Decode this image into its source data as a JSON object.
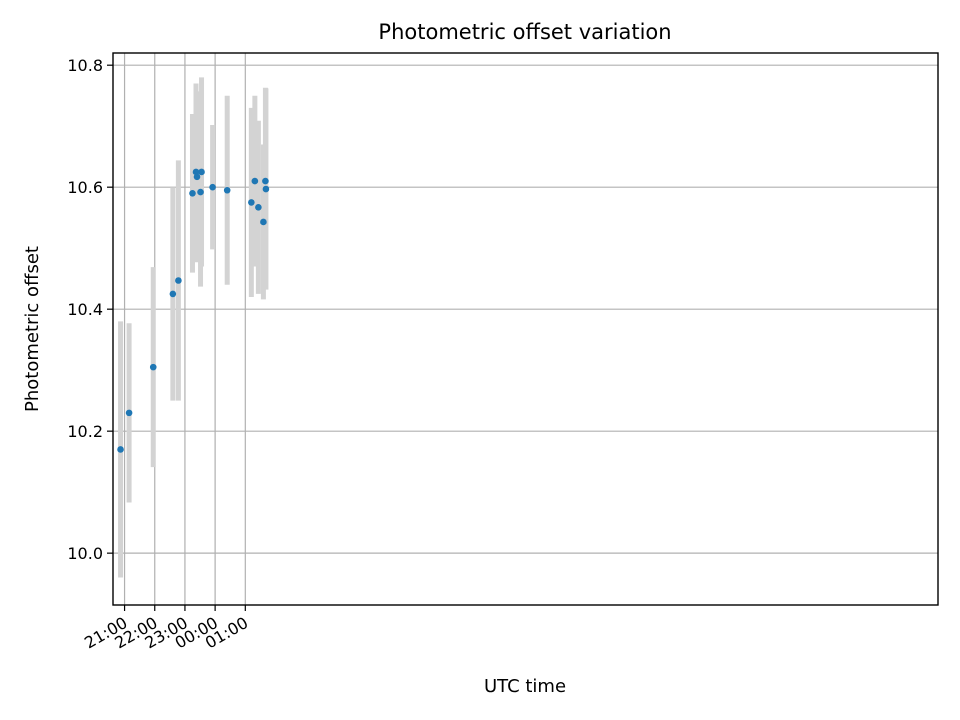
{
  "chart_data": {
    "type": "scatter",
    "title": "Photometric offset variation",
    "xlabel": "UTC time",
    "ylabel": "Photometric offset",
    "x_unit": "UTC time (HH:MM)",
    "xlim": [
      "20:37",
      "23:57+1"
    ],
    "ylim": [
      9.915,
      10.82
    ],
    "x_ticks": [
      "21:00",
      "22:00",
      "23:00",
      "00:00",
      "01:00"
    ],
    "y_ticks": [
      "10.0",
      "10.2",
      "10.4",
      "10.6",
      "10.8"
    ],
    "grid": true,
    "marker_color": "#1f77b4",
    "errorbar_color": "#d3d3d3",
    "points": [
      {
        "time": "20:52",
        "y": 10.17,
        "err": 0.21
      },
      {
        "time": "21:09",
        "y": 10.23,
        "err": 0.147
      },
      {
        "time": "21:57",
        "y": 10.305,
        "err": 0.164
      },
      {
        "time": "22:36",
        "y": 10.425,
        "err": 0.175
      },
      {
        "time": "22:47",
        "y": 10.447,
        "err": 0.197
      },
      {
        "time": "23:15",
        "y": 10.59,
        "err": 0.13
      },
      {
        "time": "23:22",
        "y": 10.625,
        "err": 0.145
      },
      {
        "time": "23:24",
        "y": 10.617,
        "err": 0.14
      },
      {
        "time": "23:31",
        "y": 10.592,
        "err": 0.155
      },
      {
        "time": "23:33",
        "y": 10.625,
        "err": 0.155
      },
      {
        "time": "23:55",
        "y": 10.6,
        "err": 0.102
      },
      {
        "time": "00:24",
        "y": 10.595,
        "err": 0.155
      },
      {
        "time": "01:12",
        "y": 10.575,
        "err": 0.155
      },
      {
        "time": "01:19",
        "y": 10.61,
        "err": 0.14
      },
      {
        "time": "01:26",
        "y": 10.567,
        "err": 0.142
      },
      {
        "time": "01:36",
        "y": 10.543,
        "err": 0.127
      },
      {
        "time": "01:40",
        "y": 10.61,
        "err": 0.153
      },
      {
        "time": "01:41",
        "y": 10.597,
        "err": 0.165
      }
    ]
  }
}
